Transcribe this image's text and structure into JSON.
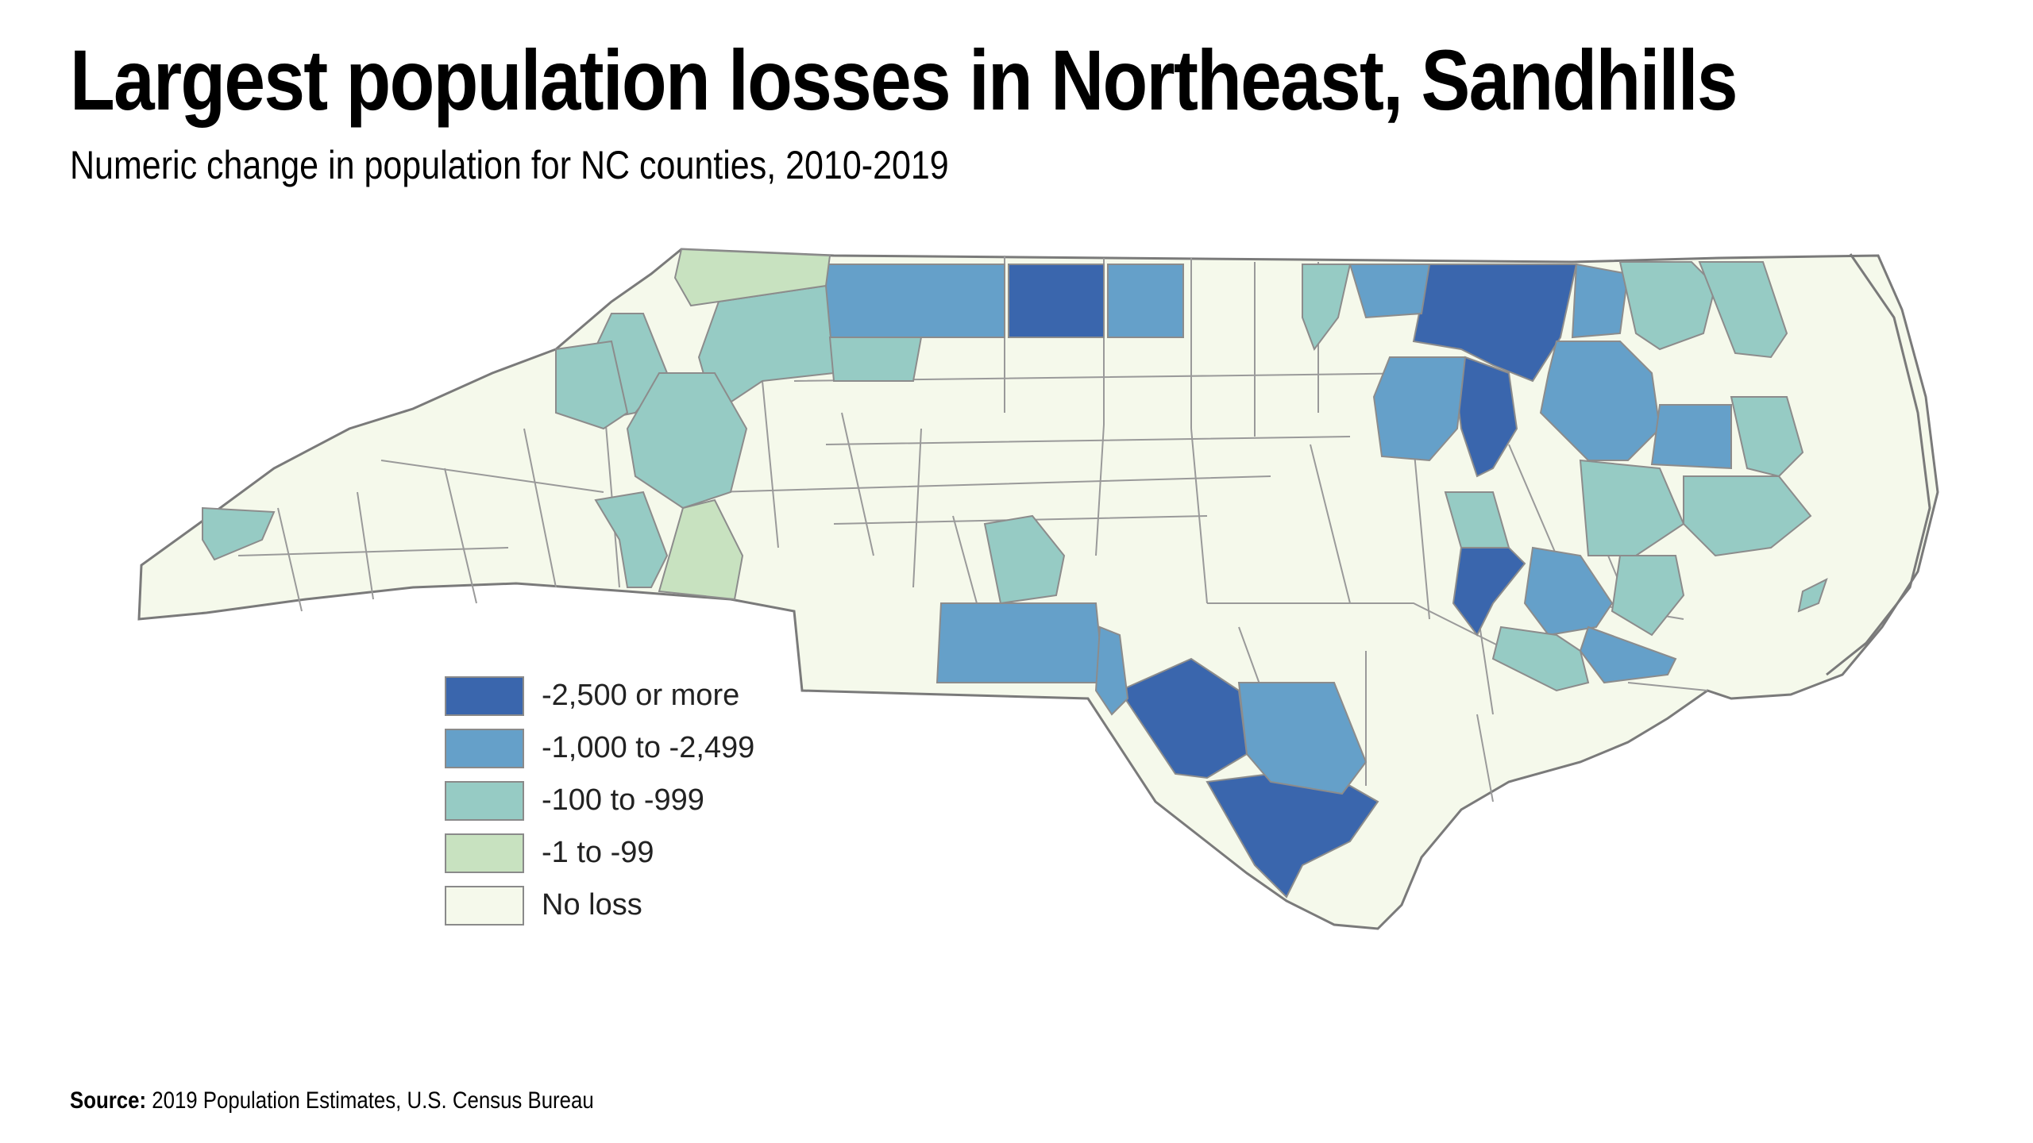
{
  "title": "Largest population losses in Northeast, Sandhills",
  "subtitle": "Numeric change in population for NC counties, 2010-2019",
  "source": {
    "label": "Source:",
    "text": "2019 Population Estimates, U.S. Census Bureau"
  },
  "legend": [
    {
      "label": "-2,500 or more",
      "color": "#3a66ad"
    },
    {
      "label": "-1,000 to -2,499",
      "color": "#65a0c9"
    },
    {
      "label": "-100 to -999",
      "color": "#96cbc4"
    },
    {
      "label": "-1 to -99",
      "color": "#c8e2c0"
    },
    {
      "label": "No loss",
      "color": "#f5f9eb"
    }
  ],
  "colors": {
    "county_border": "#8c8c8c",
    "state_border": "#7a7a7a"
  }
}
